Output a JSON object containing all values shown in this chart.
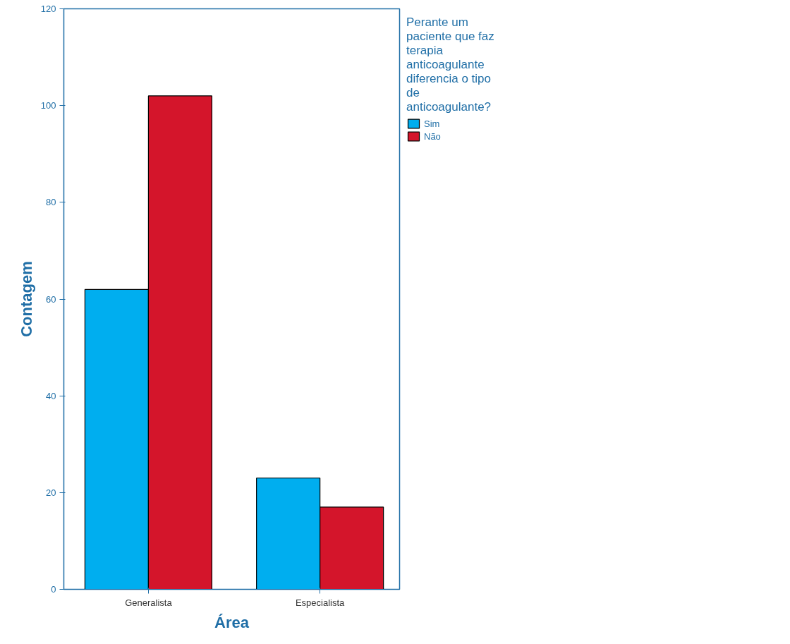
{
  "chart_data": {
    "type": "bar",
    "xlabel": "Área",
    "ylabel": "Contagem",
    "legend_title": "Perante um paciente que faz terapia anticoagulante diferencia o tipo de anticoagulante?",
    "categories": [
      "Generalista",
      "Especialista"
    ],
    "series": [
      {
        "name": "Sim",
        "color": "#00aeef",
        "values": [
          62,
          23
        ]
      },
      {
        "name": "Não",
        "color": "#d4152b",
        "values": [
          102,
          17
        ]
      }
    ],
    "ylim": [
      0,
      120
    ],
    "yticks": [
      0,
      20,
      40,
      60,
      80,
      100,
      120
    ],
    "grid": false,
    "legend": "right"
  }
}
